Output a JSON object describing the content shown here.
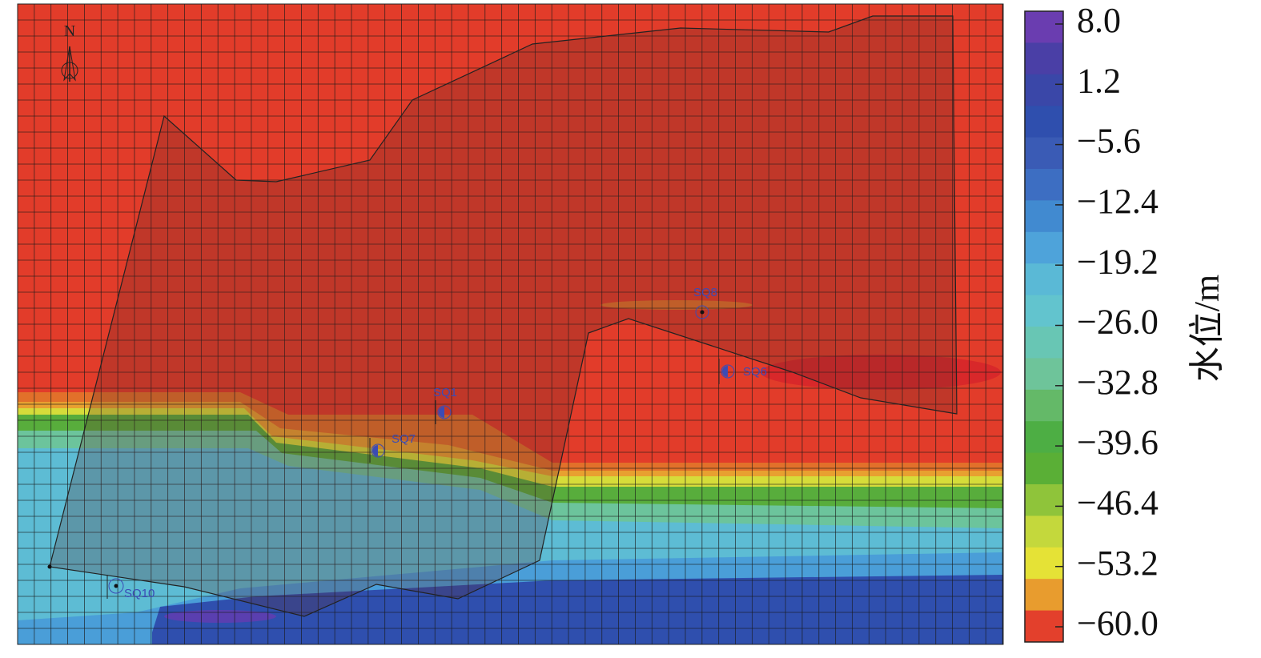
{
  "map": {
    "north": "N",
    "wells": [
      "SQ8",
      "SQ6",
      "SQ1",
      "SQ7",
      "SQ10"
    ]
  },
  "legend": {
    "title": "水位/m",
    "ticks": [
      {
        "value": 8.0,
        "label": "8.0"
      },
      {
        "value": 1.2,
        "label": "1.2"
      },
      {
        "value": -5.6,
        "label": "−5.6"
      },
      {
        "value": -12.4,
        "label": "−12.4"
      },
      {
        "value": -19.2,
        "label": "−19.2"
      },
      {
        "value": -26.0,
        "label": "−26.0"
      },
      {
        "value": -32.8,
        "label": "−32.8"
      },
      {
        "value": -39.6,
        "label": "−39.6"
      },
      {
        "value": -46.4,
        "label": "−46.4"
      },
      {
        "value": -53.2,
        "label": "−53.2"
      },
      {
        "value": -60.0,
        "label": "−60.0"
      }
    ],
    "colors": [
      "#6a3db0",
      "#4a3fa6",
      "#3a47a8",
      "#2f4fae",
      "#3a5bb5",
      "#3d6ec2",
      "#418ad0",
      "#4ea3da",
      "#5ab9d6",
      "#62c4ce",
      "#68c6b4",
      "#6ec49a",
      "#64b968",
      "#4dae44",
      "#5aaf36",
      "#8fc43a",
      "#c4d83c",
      "#e5e236",
      "#e89c2e",
      "#e3402c"
    ]
  }
}
